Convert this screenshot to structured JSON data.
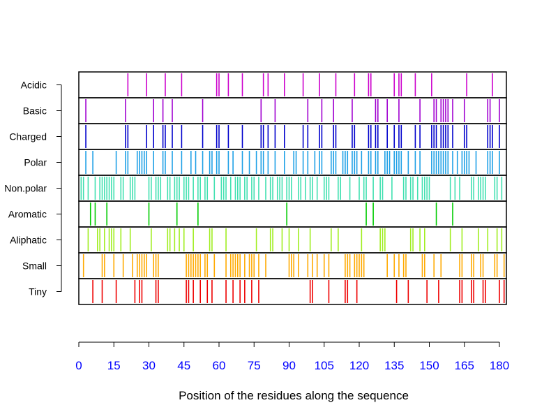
{
  "chart_data": {
    "type": "barcode",
    "xlabel": "Position of the residues along the sequence",
    "xlim": [
      0,
      182
    ],
    "x_ticks": [
      "0",
      "15",
      "30",
      "45",
      "60",
      "75",
      "90",
      "105",
      "120",
      "135",
      "150",
      "165",
      "180"
    ],
    "tick_color": "#0000ff",
    "series": [
      {
        "name": "Acidic",
        "color": "#cc00cc",
        "positions": [
          21,
          29,
          37,
          44,
          59,
          60,
          64,
          70,
          79,
          81,
          88,
          96,
          103,
          110,
          118,
          124,
          125,
          135,
          137,
          138,
          144,
          151,
          166,
          177
        ]
      },
      {
        "name": "Basic",
        "color": "#a000d0",
        "positions": [
          3,
          20,
          32,
          36,
          40,
          53,
          78,
          84,
          98,
          104,
          109,
          117,
          127,
          128,
          132,
          137,
          146,
          152,
          153,
          155,
          156,
          157,
          158,
          160,
          165,
          175,
          176,
          180
        ]
      },
      {
        "name": "Charged",
        "color": "#0000cc",
        "positions": [
          3,
          20,
          21,
          29,
          32,
          36,
          37,
          40,
          44,
          53,
          59,
          60,
          64,
          70,
          78,
          79,
          81,
          84,
          88,
          96,
          98,
          103,
          104,
          109,
          110,
          117,
          118,
          124,
          125,
          127,
          128,
          132,
          135,
          137,
          138,
          144,
          146,
          151,
          152,
          153,
          155,
          156,
          157,
          158,
          160,
          165,
          166,
          175,
          176,
          177,
          180
        ]
      },
      {
        "name": "Polar",
        "color": "#1ea0e6",
        "positions": [
          3,
          6,
          16,
          20,
          21,
          25,
          26,
          27,
          28,
          29,
          32,
          36,
          37,
          40,
          44,
          48,
          50,
          53,
          56,
          57,
          59,
          60,
          64,
          66,
          70,
          73,
          76,
          78,
          79,
          81,
          84,
          88,
          92,
          93,
          96,
          98,
          101,
          103,
          104,
          108,
          109,
          110,
          113,
          114,
          115,
          117,
          118,
          119,
          121,
          124,
          125,
          127,
          128,
          131,
          132,
          133,
          135,
          136,
          137,
          138,
          141,
          144,
          146,
          151,
          152,
          153,
          154,
          155,
          156,
          157,
          158,
          160,
          162,
          164,
          165,
          166,
          167,
          170,
          175,
          176,
          177,
          180
        ]
      },
      {
        "name": "Non.polar",
        "color": "#40e0b0",
        "positions": [
          1,
          2,
          4,
          7,
          9,
          10,
          11,
          12,
          13,
          14,
          15,
          18,
          19,
          22,
          23,
          24,
          30,
          31,
          33,
          34,
          35,
          38,
          39,
          41,
          42,
          43,
          45,
          46,
          47,
          49,
          51,
          52,
          54,
          55,
          58,
          61,
          62,
          63,
          65,
          67,
          68,
          69,
          71,
          72,
          74,
          75,
          77,
          80,
          82,
          83,
          85,
          86,
          87,
          89,
          90,
          91,
          94,
          95,
          97,
          99,
          100,
          102,
          105,
          106,
          107,
          111,
          112,
          116,
          120,
          122,
          123,
          126,
          129,
          130,
          134,
          139,
          140,
          142,
          143,
          145,
          147,
          148,
          149,
          150,
          159,
          161,
          163,
          168,
          169,
          171,
          172,
          173,
          174,
          178,
          179,
          181
        ]
      },
      {
        "name": "Aromatic",
        "color": "#00cc00",
        "positions": [
          5,
          7,
          12,
          30,
          42,
          51,
          89,
          123,
          126,
          153,
          160
        ]
      },
      {
        "name": "Aliphatic",
        "color": "#a0ee20",
        "positions": [
          4,
          8,
          9,
          11,
          13,
          14,
          15,
          18,
          22,
          31,
          38,
          39,
          41,
          43,
          45,
          49,
          56,
          57,
          63,
          76,
          82,
          83,
          87,
          90,
          94,
          99,
          108,
          111,
          121,
          129,
          130,
          131,
          142,
          143,
          146,
          148,
          159,
          164,
          171,
          175,
          179,
          181
        ]
      },
      {
        "name": "Small",
        "color": "#ffaa00",
        "positions": [
          2,
          10,
          11,
          15,
          19,
          23,
          25,
          26,
          27,
          28,
          29,
          32,
          33,
          34,
          46,
          47,
          48,
          49,
          50,
          51,
          52,
          54,
          55,
          58,
          63,
          65,
          66,
          67,
          68,
          69,
          71,
          73,
          74,
          75,
          77,
          80,
          90,
          91,
          92,
          94,
          98,
          100,
          102,
          105,
          107,
          114,
          115,
          116,
          118,
          119,
          120,
          121,
          122,
          132,
          135,
          137,
          139,
          140,
          147,
          148,
          152,
          155,
          163,
          164,
          168,
          169,
          172,
          173,
          178,
          179,
          182
        ]
      },
      {
        "name": "Tiny",
        "color": "#ee0000",
        "positions": [
          6,
          10,
          16,
          24,
          26,
          27,
          33,
          34,
          46,
          47,
          49,
          52,
          55,
          57,
          63,
          66,
          69,
          71,
          74,
          77,
          99,
          100,
          107,
          114,
          115,
          119,
          136,
          141,
          149,
          154,
          163,
          164,
          168,
          169,
          173,
          174,
          180,
          182
        ]
      }
    ]
  }
}
